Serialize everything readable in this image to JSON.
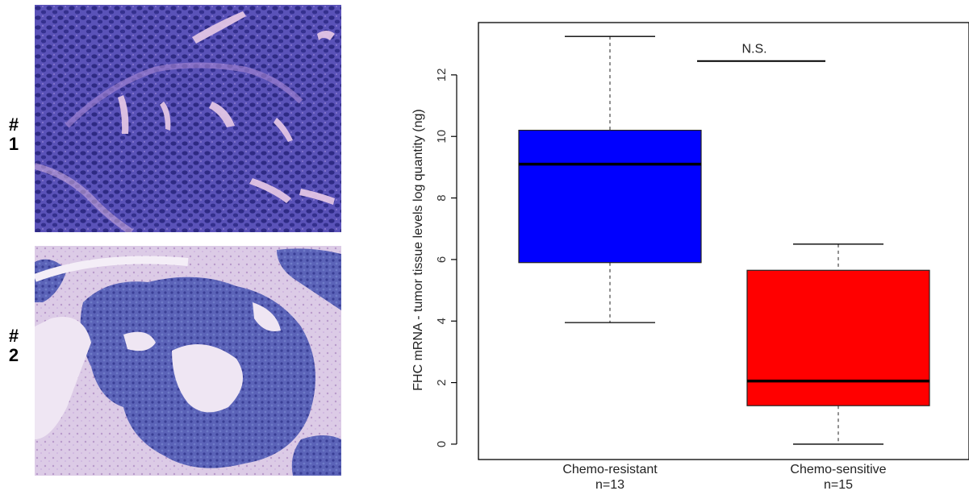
{
  "panel_labels": [
    {
      "hash": "#",
      "num": "1"
    },
    {
      "hash": "#",
      "num": "2"
    }
  ],
  "images": [
    {
      "icon": "histology-micrograph-icon"
    },
    {
      "icon": "histology-micrograph-icon"
    }
  ],
  "chart_data": {
    "type": "boxplot",
    "ylabel": "FHC mRNA - tumor tissue levels log quantity (ng)",
    "ylim": [
      -0.5,
      13.7
    ],
    "yticks": [
      0,
      2,
      4,
      6,
      8,
      10,
      12
    ],
    "categories": [
      {
        "name": "Chemo-resistant",
        "n_label": "n=13",
        "color": "#0000ff",
        "whisker_low": 3.95,
        "q1": 5.9,
        "median": 9.1,
        "q3": 10.2,
        "whisker_high": 13.25
      },
      {
        "name": "Chemo-sensitive",
        "n_label": "n=15",
        "color": "#ff0000",
        "whisker_low": 0.0,
        "q1": 1.25,
        "median": 2.05,
        "q3": 5.65,
        "whisker_high": 6.5
      }
    ],
    "annotation": {
      "text": "N.S.",
      "y": 12.45
    },
    "grid": false
  }
}
